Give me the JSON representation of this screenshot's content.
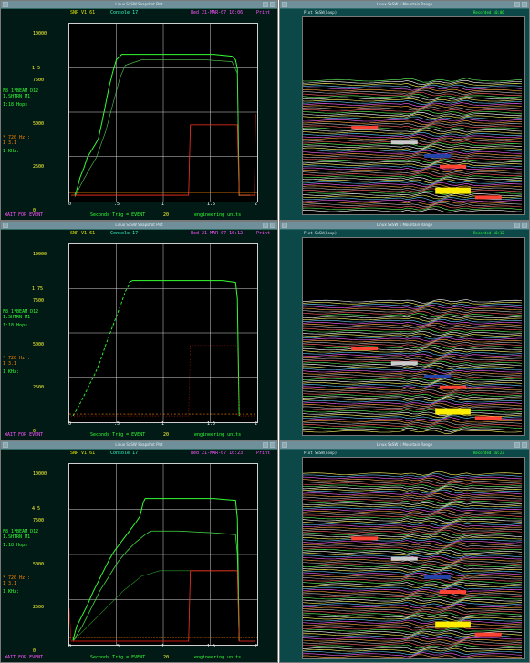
{
  "panels": [
    {
      "window_title": "Linux SxSW Snapshot Plot",
      "header": {
        "left": "SNP V1.61",
        "middle": "Console 17",
        "right": "Wed 21-MAR-07 10:06",
        "print": "Print"
      },
      "y_ticks": [
        "10000",
        "7500",
        "5000",
        "2500",
        "0"
      ],
      "x_ticks": [
        "0",
        ".5",
        "1",
        "1.5",
        "2"
      ],
      "sidebar": {
        "r1": "1.5",
        "r2": "F8 1*BEAM  D12",
        "r3": "1.SHTRN  M1",
        "r4": "1:18  Hops",
        "r5": "* 720 Hz :",
        "r6": "1  3.1",
        "r7": "1  KHz:"
      },
      "footer": {
        "status": "WAIT FOR EVENT",
        "axis": "Seconds  Trig = EVENT",
        "trig": "20",
        "units": "engineering units"
      }
    },
    {
      "window_title": "Linux SxSW Snapshot Plot",
      "header": {
        "left": "SNP V1.61",
        "middle": "Console 17",
        "right": "Wed 21-MAR-07 10:12",
        "print": "Print"
      },
      "y_ticks": [
        "10000",
        "7500",
        "5000",
        "2500",
        "0"
      ],
      "x_ticks": [
        "0",
        ".5",
        "1",
        "1.5",
        "2"
      ],
      "sidebar": {
        "r1": "1.75",
        "r2": "F8 1*BEAM  D12",
        "r3": "1.SHTRN  M1",
        "r4": "1:18  Hops",
        "r5": "* 720 Hz :",
        "r6": "1  3.1",
        "r7": "1  KHz:"
      },
      "footer": {
        "status": "WAIT FOR EVENT",
        "axis": "Seconds  Trig = EVENT",
        "trig": "20",
        "units": "engineering units"
      }
    },
    {
      "window_title": "Linux SxSW Snapshot Plot",
      "header": {
        "left": "SNP V1.61",
        "middle": "Console 17",
        "right": "Wed 21-MAR-07 10:23",
        "print": "Print"
      },
      "y_ticks": [
        "10000",
        "7500",
        "5000",
        "2500",
        "0"
      ],
      "x_ticks": [
        "0",
        ".5",
        "1",
        "1.5",
        "2"
      ],
      "sidebar": {
        "r1": "4.5",
        "r2": "F8 1*BEAM  D12",
        "r3": "1.SHTRN  M1",
        "r4": "1:18  Hops",
        "r5": "* 720 Hz :",
        "r6": "1  3.1",
        "r7": "1  KHz:"
      },
      "footer": {
        "status": "WAIT FOR EVENT",
        "axis": "Seconds  Trig = EVENT",
        "trig": "20",
        "units": "engineering units"
      }
    }
  ],
  "monitors": [
    {
      "window_title": "Linux SxSW 1 Mountain Range",
      "header": "Plot SxSW(Loop)",
      "timestamp": "Recorded 10:06"
    },
    {
      "window_title": "Linux SxSW 1 Mountain Range",
      "header": "Plot SxSW(Loop)",
      "timestamp": "Recorded 10:12"
    },
    {
      "window_title": "Linux SxSW 1 Mountain Range",
      "header": "Plot SxSW(Loop)",
      "timestamp": "Recorded 10:23"
    }
  ],
  "colors": {
    "accent_green": "#33ff33",
    "accent_red": "#ff3322",
    "accent_orange": "#ff8800",
    "header_yellow": "#e6e600",
    "header_cyan": "#33ffcc",
    "header_magenta": "#ff55ff",
    "label_yellow": "#ffff33",
    "label_green": "#33ff33",
    "highlight_yellow": "#ffee00",
    "highlight_red": "#ff4433",
    "mountain_bg": "#000000"
  }
}
